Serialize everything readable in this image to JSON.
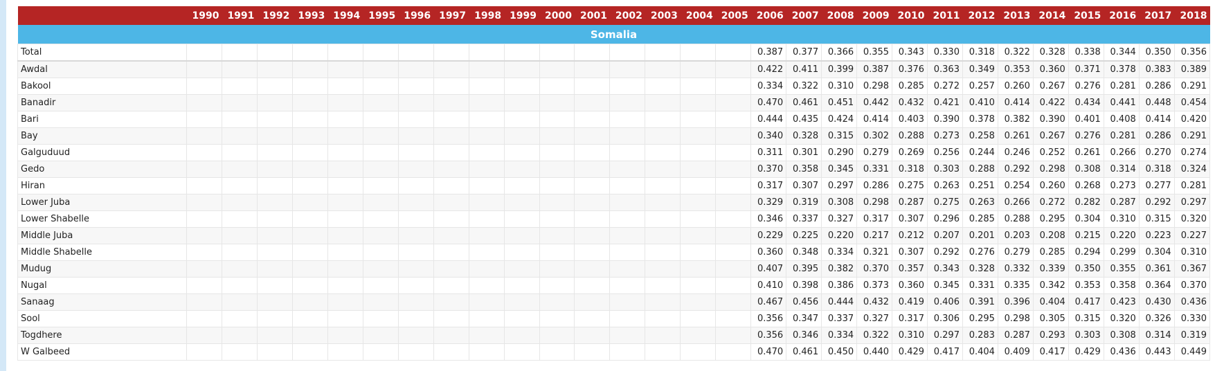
{
  "table": {
    "years": [
      1990,
      1991,
      1992,
      1993,
      1994,
      1995,
      1996,
      1997,
      1998,
      1999,
      2000,
      2001,
      2002,
      2003,
      2004,
      2005,
      2006,
      2007,
      2008,
      2009,
      2010,
      2011,
      2012,
      2013,
      2014,
      2015,
      2016,
      2017,
      2018
    ],
    "group": "Somalia",
    "rows": [
      {
        "name": "Total",
        "values": [
          null,
          null,
          null,
          null,
          null,
          null,
          null,
          null,
          null,
          null,
          null,
          null,
          null,
          null,
          null,
          null,
          "0.387",
          "0.377",
          "0.366",
          "0.355",
          "0.343",
          "0.330",
          "0.318",
          "0.322",
          "0.328",
          "0.338",
          "0.344",
          "0.350",
          "0.356"
        ]
      },
      {
        "name": "Awdal",
        "values": [
          null,
          null,
          null,
          null,
          null,
          null,
          null,
          null,
          null,
          null,
          null,
          null,
          null,
          null,
          null,
          null,
          "0.422",
          "0.411",
          "0.399",
          "0.387",
          "0.376",
          "0.363",
          "0.349",
          "0.353",
          "0.360",
          "0.371",
          "0.378",
          "0.383",
          "0.389"
        ]
      },
      {
        "name": "Bakool",
        "values": [
          null,
          null,
          null,
          null,
          null,
          null,
          null,
          null,
          null,
          null,
          null,
          null,
          null,
          null,
          null,
          null,
          "0.334",
          "0.322",
          "0.310",
          "0.298",
          "0.285",
          "0.272",
          "0.257",
          "0.260",
          "0.267",
          "0.276",
          "0.281",
          "0.286",
          "0.291"
        ]
      },
      {
        "name": "Banadir",
        "values": [
          null,
          null,
          null,
          null,
          null,
          null,
          null,
          null,
          null,
          null,
          null,
          null,
          null,
          null,
          null,
          null,
          "0.470",
          "0.461",
          "0.451",
          "0.442",
          "0.432",
          "0.421",
          "0.410",
          "0.414",
          "0.422",
          "0.434",
          "0.441",
          "0.448",
          "0.454"
        ]
      },
      {
        "name": "Bari",
        "values": [
          null,
          null,
          null,
          null,
          null,
          null,
          null,
          null,
          null,
          null,
          null,
          null,
          null,
          null,
          null,
          null,
          "0.444",
          "0.435",
          "0.424",
          "0.414",
          "0.403",
          "0.390",
          "0.378",
          "0.382",
          "0.390",
          "0.401",
          "0.408",
          "0.414",
          "0.420"
        ]
      },
      {
        "name": "Bay",
        "values": [
          null,
          null,
          null,
          null,
          null,
          null,
          null,
          null,
          null,
          null,
          null,
          null,
          null,
          null,
          null,
          null,
          "0.340",
          "0.328",
          "0.315",
          "0.302",
          "0.288",
          "0.273",
          "0.258",
          "0.261",
          "0.267",
          "0.276",
          "0.281",
          "0.286",
          "0.291"
        ]
      },
      {
        "name": "Galguduud",
        "values": [
          null,
          null,
          null,
          null,
          null,
          null,
          null,
          null,
          null,
          null,
          null,
          null,
          null,
          null,
          null,
          null,
          "0.311",
          "0.301",
          "0.290",
          "0.279",
          "0.269",
          "0.256",
          "0.244",
          "0.246",
          "0.252",
          "0.261",
          "0.266",
          "0.270",
          "0.274"
        ]
      },
      {
        "name": "Gedo",
        "values": [
          null,
          null,
          null,
          null,
          null,
          null,
          null,
          null,
          null,
          null,
          null,
          null,
          null,
          null,
          null,
          null,
          "0.370",
          "0.358",
          "0.345",
          "0.331",
          "0.318",
          "0.303",
          "0.288",
          "0.292",
          "0.298",
          "0.308",
          "0.314",
          "0.318",
          "0.324"
        ]
      },
      {
        "name": "Hiran",
        "values": [
          null,
          null,
          null,
          null,
          null,
          null,
          null,
          null,
          null,
          null,
          null,
          null,
          null,
          null,
          null,
          null,
          "0.317",
          "0.307",
          "0.297",
          "0.286",
          "0.275",
          "0.263",
          "0.251",
          "0.254",
          "0.260",
          "0.268",
          "0.273",
          "0.277",
          "0.281"
        ]
      },
      {
        "name": "Lower Juba",
        "values": [
          null,
          null,
          null,
          null,
          null,
          null,
          null,
          null,
          null,
          null,
          null,
          null,
          null,
          null,
          null,
          null,
          "0.329",
          "0.319",
          "0.308",
          "0.298",
          "0.287",
          "0.275",
          "0.263",
          "0.266",
          "0.272",
          "0.282",
          "0.287",
          "0.292",
          "0.297"
        ]
      },
      {
        "name": "Lower Shabelle",
        "values": [
          null,
          null,
          null,
          null,
          null,
          null,
          null,
          null,
          null,
          null,
          null,
          null,
          null,
          null,
          null,
          null,
          "0.346",
          "0.337",
          "0.327",
          "0.317",
          "0.307",
          "0.296",
          "0.285",
          "0.288",
          "0.295",
          "0.304",
          "0.310",
          "0.315",
          "0.320"
        ]
      },
      {
        "name": "Middle Juba",
        "values": [
          null,
          null,
          null,
          null,
          null,
          null,
          null,
          null,
          null,
          null,
          null,
          null,
          null,
          null,
          null,
          null,
          "0.229",
          "0.225",
          "0.220",
          "0.217",
          "0.212",
          "0.207",
          "0.201",
          "0.203",
          "0.208",
          "0.215",
          "0.220",
          "0.223",
          "0.227"
        ]
      },
      {
        "name": "Middle Shabelle",
        "values": [
          null,
          null,
          null,
          null,
          null,
          null,
          null,
          null,
          null,
          null,
          null,
          null,
          null,
          null,
          null,
          null,
          "0.360",
          "0.348",
          "0.334",
          "0.321",
          "0.307",
          "0.292",
          "0.276",
          "0.279",
          "0.285",
          "0.294",
          "0.299",
          "0.304",
          "0.310"
        ]
      },
      {
        "name": "Mudug",
        "values": [
          null,
          null,
          null,
          null,
          null,
          null,
          null,
          null,
          null,
          null,
          null,
          null,
          null,
          null,
          null,
          null,
          "0.407",
          "0.395",
          "0.382",
          "0.370",
          "0.357",
          "0.343",
          "0.328",
          "0.332",
          "0.339",
          "0.350",
          "0.355",
          "0.361",
          "0.367"
        ]
      },
      {
        "name": "Nugal",
        "values": [
          null,
          null,
          null,
          null,
          null,
          null,
          null,
          null,
          null,
          null,
          null,
          null,
          null,
          null,
          null,
          null,
          "0.410",
          "0.398",
          "0.386",
          "0.373",
          "0.360",
          "0.345",
          "0.331",
          "0.335",
          "0.342",
          "0.353",
          "0.358",
          "0.364",
          "0.370"
        ]
      },
      {
        "name": "Sanaag",
        "values": [
          null,
          null,
          null,
          null,
          null,
          null,
          null,
          null,
          null,
          null,
          null,
          null,
          null,
          null,
          null,
          null,
          "0.467",
          "0.456",
          "0.444",
          "0.432",
          "0.419",
          "0.406",
          "0.391",
          "0.396",
          "0.404",
          "0.417",
          "0.423",
          "0.430",
          "0.436"
        ]
      },
      {
        "name": "Sool",
        "values": [
          null,
          null,
          null,
          null,
          null,
          null,
          null,
          null,
          null,
          null,
          null,
          null,
          null,
          null,
          null,
          null,
          "0.356",
          "0.347",
          "0.337",
          "0.327",
          "0.317",
          "0.306",
          "0.295",
          "0.298",
          "0.305",
          "0.315",
          "0.320",
          "0.326",
          "0.330"
        ]
      },
      {
        "name": "Togdhere",
        "values": [
          null,
          null,
          null,
          null,
          null,
          null,
          null,
          null,
          null,
          null,
          null,
          null,
          null,
          null,
          null,
          null,
          "0.356",
          "0.346",
          "0.334",
          "0.322",
          "0.310",
          "0.297",
          "0.283",
          "0.287",
          "0.293",
          "0.303",
          "0.308",
          "0.314",
          "0.319"
        ]
      },
      {
        "name": "W Galbeed",
        "values": [
          null,
          null,
          null,
          null,
          null,
          null,
          null,
          null,
          null,
          null,
          null,
          null,
          null,
          null,
          null,
          null,
          "0.470",
          "0.461",
          "0.450",
          "0.440",
          "0.429",
          "0.417",
          "0.404",
          "0.409",
          "0.417",
          "0.429",
          "0.436",
          "0.443",
          "0.449"
        ]
      }
    ]
  }
}
